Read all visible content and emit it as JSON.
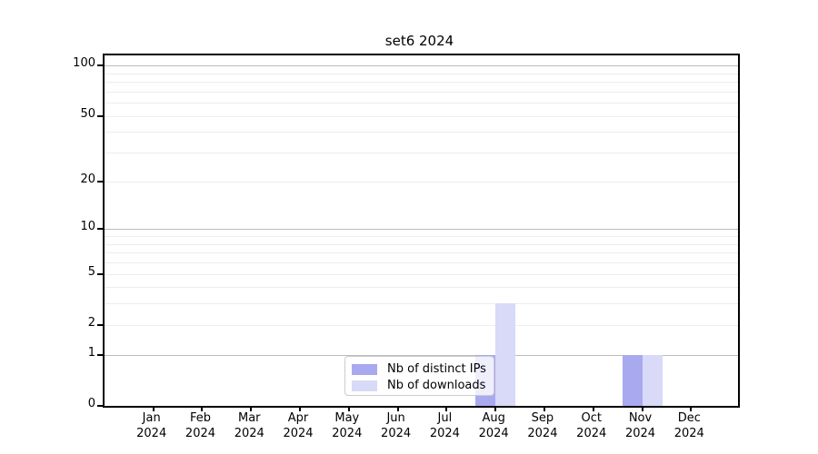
{
  "chart_data": {
    "type": "bar",
    "title": "set6 2024",
    "categories": [
      {
        "month": "Jan",
        "year": "2024"
      },
      {
        "month": "Feb",
        "year": "2024"
      },
      {
        "month": "Mar",
        "year": "2024"
      },
      {
        "month": "Apr",
        "year": "2024"
      },
      {
        "month": "May",
        "year": "2024"
      },
      {
        "month": "Jun",
        "year": "2024"
      },
      {
        "month": "Jul",
        "year": "2024"
      },
      {
        "month": "Aug",
        "year": "2024"
      },
      {
        "month": "Sep",
        "year": "2024"
      },
      {
        "month": "Oct",
        "year": "2024"
      },
      {
        "month": "Nov",
        "year": "2024"
      },
      {
        "month": "Dec",
        "year": "2024"
      }
    ],
    "series": [
      {
        "name": "Nb of distinct IPs",
        "color": "#a9a9f0",
        "values": [
          0,
          0,
          0,
          0,
          0,
          0,
          0,
          1,
          0,
          0,
          1,
          0
        ]
      },
      {
        "name": "Nb of downloads",
        "color": "#d9d9f8",
        "values": [
          0,
          0,
          0,
          0,
          0,
          0,
          0,
          3,
          0,
          0,
          1,
          0
        ]
      }
    ],
    "xlabel": "",
    "ylabel": "",
    "yscale": "log(value+1)",
    "ylim": [
      0,
      115
    ],
    "yticks": [
      0,
      1,
      2,
      5,
      10,
      20,
      50,
      100
    ],
    "major_gridlines": [
      1,
      10,
      100
    ],
    "minor_gridlines": [
      2,
      3,
      4,
      5,
      6,
      7,
      8,
      9,
      20,
      30,
      40,
      50,
      60,
      70,
      80,
      90
    ],
    "grid": true,
    "legend_position": "lower center inside plot"
  },
  "legend": {
    "items": [
      {
        "label": "Nb of distinct IPs",
        "color": "#a9a9f0"
      },
      {
        "label": "Nb of downloads",
        "color": "#d9d9f8"
      }
    ]
  },
  "colors": {
    "background": "#ffffff",
    "spine": "#000000",
    "major_grid": "#bcbcbc",
    "minor_grid": "#ededed",
    "text": "#000000"
  }
}
